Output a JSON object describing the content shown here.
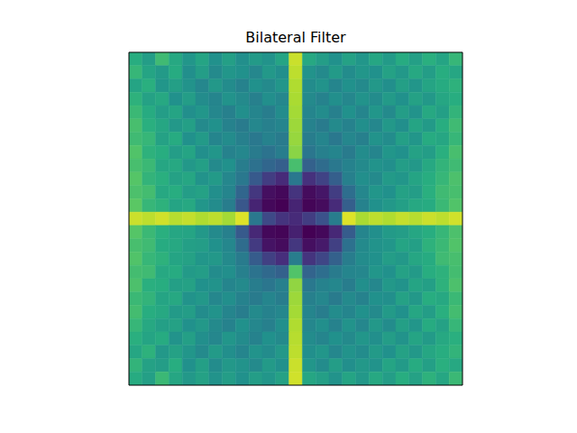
{
  "chart_data": {
    "type": "heatmap",
    "title": "Bilateral Filter",
    "xlim": [
      0,
      25
    ],
    "ylim": [
      0,
      25
    ],
    "xticks": [],
    "yticks": [],
    "tick_labels": false,
    "zlim": [
      0,
      1
    ],
    "cells": [
      [
        0.62,
        0.55,
        0.68,
        0.6,
        0.52,
        0.58,
        0.5,
        0.56,
        0.49,
        0.54,
        0.51,
        0.58,
        0.92,
        0.6,
        0.55,
        0.5,
        0.57,
        0.52,
        0.59,
        0.54,
        0.61,
        0.56,
        0.63,
        0.58,
        0.66
      ],
      [
        0.66,
        0.58,
        0.54,
        0.61,
        0.49,
        0.55,
        0.47,
        0.52,
        0.5,
        0.46,
        0.53,
        0.49,
        0.9,
        0.51,
        0.47,
        0.54,
        0.48,
        0.52,
        0.5,
        0.57,
        0.53,
        0.6,
        0.55,
        0.62,
        0.59
      ],
      [
        0.58,
        0.63,
        0.52,
        0.56,
        0.51,
        0.46,
        0.53,
        0.48,
        0.44,
        0.5,
        0.47,
        0.52,
        0.88,
        0.48,
        0.51,
        0.45,
        0.5,
        0.47,
        0.53,
        0.49,
        0.56,
        0.52,
        0.58,
        0.61,
        0.64
      ],
      [
        0.64,
        0.57,
        0.6,
        0.5,
        0.55,
        0.48,
        0.45,
        0.51,
        0.47,
        0.43,
        0.49,
        0.46,
        0.87,
        0.47,
        0.44,
        0.49,
        0.46,
        0.51,
        0.48,
        0.54,
        0.5,
        0.57,
        0.53,
        0.59,
        0.62
      ],
      [
        0.67,
        0.61,
        0.55,
        0.58,
        0.49,
        0.52,
        0.46,
        0.43,
        0.49,
        0.45,
        0.42,
        0.48,
        0.86,
        0.45,
        0.48,
        0.43,
        0.5,
        0.45,
        0.52,
        0.47,
        0.55,
        0.51,
        0.6,
        0.56,
        0.65
      ],
      [
        0.7,
        0.63,
        0.59,
        0.53,
        0.56,
        0.47,
        0.5,
        0.44,
        0.41,
        0.46,
        0.43,
        0.45,
        0.85,
        0.44,
        0.41,
        0.47,
        0.44,
        0.49,
        0.46,
        0.53,
        0.49,
        0.58,
        0.54,
        0.62,
        0.68
      ],
      [
        0.68,
        0.66,
        0.57,
        0.61,
        0.5,
        0.54,
        0.45,
        0.48,
        0.43,
        0.4,
        0.44,
        0.41,
        0.84,
        0.42,
        0.45,
        0.4,
        0.46,
        0.43,
        0.51,
        0.48,
        0.56,
        0.52,
        0.61,
        0.59,
        0.66
      ],
      [
        0.72,
        0.64,
        0.62,
        0.55,
        0.58,
        0.49,
        0.52,
        0.44,
        0.46,
        0.41,
        0.38,
        0.42,
        0.82,
        0.39,
        0.43,
        0.45,
        0.41,
        0.48,
        0.45,
        0.52,
        0.5,
        0.57,
        0.55,
        0.63,
        0.7
      ],
      [
        0.7,
        0.67,
        0.59,
        0.6,
        0.53,
        0.56,
        0.47,
        0.5,
        0.42,
        0.37,
        0.33,
        0.3,
        0.7,
        0.31,
        0.35,
        0.4,
        0.44,
        0.47,
        0.51,
        0.49,
        0.55,
        0.53,
        0.6,
        0.65,
        0.68
      ],
      [
        0.73,
        0.65,
        0.63,
        0.57,
        0.59,
        0.51,
        0.54,
        0.46,
        0.4,
        0.28,
        0.18,
        0.12,
        0.4,
        0.14,
        0.2,
        0.3,
        0.43,
        0.49,
        0.47,
        0.54,
        0.52,
        0.58,
        0.62,
        0.66,
        0.71
      ],
      [
        0.71,
        0.69,
        0.6,
        0.62,
        0.55,
        0.57,
        0.49,
        0.45,
        0.33,
        0.16,
        0.04,
        0.02,
        0.15,
        0.03,
        0.06,
        0.18,
        0.36,
        0.46,
        0.52,
        0.5,
        0.57,
        0.55,
        0.63,
        0.68,
        0.7
      ],
      [
        0.74,
        0.66,
        0.64,
        0.58,
        0.6,
        0.52,
        0.48,
        0.42,
        0.27,
        0.1,
        0.02,
        0.0,
        0.1,
        0.01,
        0.03,
        0.12,
        0.3,
        0.44,
        0.5,
        0.53,
        0.56,
        0.6,
        0.61,
        0.67,
        0.72
      ],
      [
        0.92,
        0.9,
        0.93,
        0.89,
        0.91,
        0.88,
        0.9,
        0.86,
        0.95,
        0.4,
        0.22,
        0.15,
        0.12,
        0.18,
        0.25,
        0.42,
        0.95,
        0.87,
        0.9,
        0.88,
        0.91,
        0.89,
        0.92,
        0.9,
        0.93
      ],
      [
        0.73,
        0.67,
        0.63,
        0.59,
        0.58,
        0.53,
        0.47,
        0.43,
        0.28,
        0.11,
        0.02,
        0.01,
        0.09,
        0.0,
        0.02,
        0.11,
        0.29,
        0.45,
        0.49,
        0.54,
        0.55,
        0.59,
        0.62,
        0.66,
        0.71
      ],
      [
        0.7,
        0.68,
        0.61,
        0.6,
        0.56,
        0.55,
        0.5,
        0.46,
        0.35,
        0.17,
        0.05,
        0.03,
        0.16,
        0.04,
        0.07,
        0.19,
        0.37,
        0.47,
        0.51,
        0.52,
        0.58,
        0.56,
        0.64,
        0.67,
        0.72
      ],
      [
        0.72,
        0.66,
        0.64,
        0.58,
        0.57,
        0.52,
        0.53,
        0.47,
        0.41,
        0.29,
        0.19,
        0.13,
        0.42,
        0.15,
        0.21,
        0.31,
        0.42,
        0.48,
        0.5,
        0.55,
        0.53,
        0.59,
        0.61,
        0.68,
        0.7
      ],
      [
        0.69,
        0.68,
        0.6,
        0.61,
        0.54,
        0.55,
        0.48,
        0.49,
        0.43,
        0.38,
        0.34,
        0.31,
        0.72,
        0.32,
        0.36,
        0.41,
        0.45,
        0.46,
        0.52,
        0.5,
        0.57,
        0.54,
        0.62,
        0.64,
        0.69
      ],
      [
        0.71,
        0.63,
        0.62,
        0.56,
        0.57,
        0.5,
        0.51,
        0.45,
        0.47,
        0.42,
        0.39,
        0.43,
        0.83,
        0.4,
        0.44,
        0.46,
        0.42,
        0.49,
        0.46,
        0.53,
        0.51,
        0.58,
        0.56,
        0.64,
        0.71
      ],
      [
        0.67,
        0.65,
        0.58,
        0.6,
        0.51,
        0.53,
        0.46,
        0.49,
        0.44,
        0.41,
        0.45,
        0.42,
        0.85,
        0.43,
        0.46,
        0.41,
        0.47,
        0.44,
        0.5,
        0.49,
        0.57,
        0.53,
        0.62,
        0.6,
        0.67
      ],
      [
        0.69,
        0.62,
        0.6,
        0.54,
        0.55,
        0.48,
        0.51,
        0.45,
        0.42,
        0.47,
        0.44,
        0.46,
        0.86,
        0.45,
        0.42,
        0.48,
        0.45,
        0.5,
        0.47,
        0.54,
        0.5,
        0.59,
        0.55,
        0.63,
        0.69
      ],
      [
        0.66,
        0.6,
        0.56,
        0.57,
        0.5,
        0.53,
        0.47,
        0.44,
        0.5,
        0.46,
        0.43,
        0.49,
        0.88,
        0.46,
        0.49,
        0.44,
        0.51,
        0.46,
        0.53,
        0.48,
        0.56,
        0.52,
        0.61,
        0.57,
        0.66
      ],
      [
        0.63,
        0.58,
        0.61,
        0.51,
        0.56,
        0.49,
        0.46,
        0.52,
        0.48,
        0.44,
        0.5,
        0.47,
        0.89,
        0.48,
        0.45,
        0.5,
        0.47,
        0.52,
        0.49,
        0.55,
        0.51,
        0.58,
        0.54,
        0.6,
        0.63
      ],
      [
        0.59,
        0.64,
        0.53,
        0.57,
        0.52,
        0.47,
        0.54,
        0.49,
        0.45,
        0.51,
        0.48,
        0.53,
        0.9,
        0.49,
        0.52,
        0.46,
        0.51,
        0.48,
        0.54,
        0.5,
        0.57,
        0.53,
        0.59,
        0.62,
        0.65
      ],
      [
        0.65,
        0.57,
        0.55,
        0.62,
        0.5,
        0.56,
        0.48,
        0.53,
        0.51,
        0.47,
        0.54,
        0.5,
        0.92,
        0.52,
        0.48,
        0.55,
        0.49,
        0.53,
        0.51,
        0.58,
        0.54,
        0.61,
        0.56,
        0.63,
        0.6
      ],
      [
        0.61,
        0.56,
        0.67,
        0.59,
        0.53,
        0.57,
        0.51,
        0.55,
        0.5,
        0.55,
        0.52,
        0.57,
        0.93,
        0.59,
        0.56,
        0.51,
        0.58,
        0.53,
        0.6,
        0.55,
        0.62,
        0.57,
        0.64,
        0.59,
        0.67
      ]
    ]
  }
}
